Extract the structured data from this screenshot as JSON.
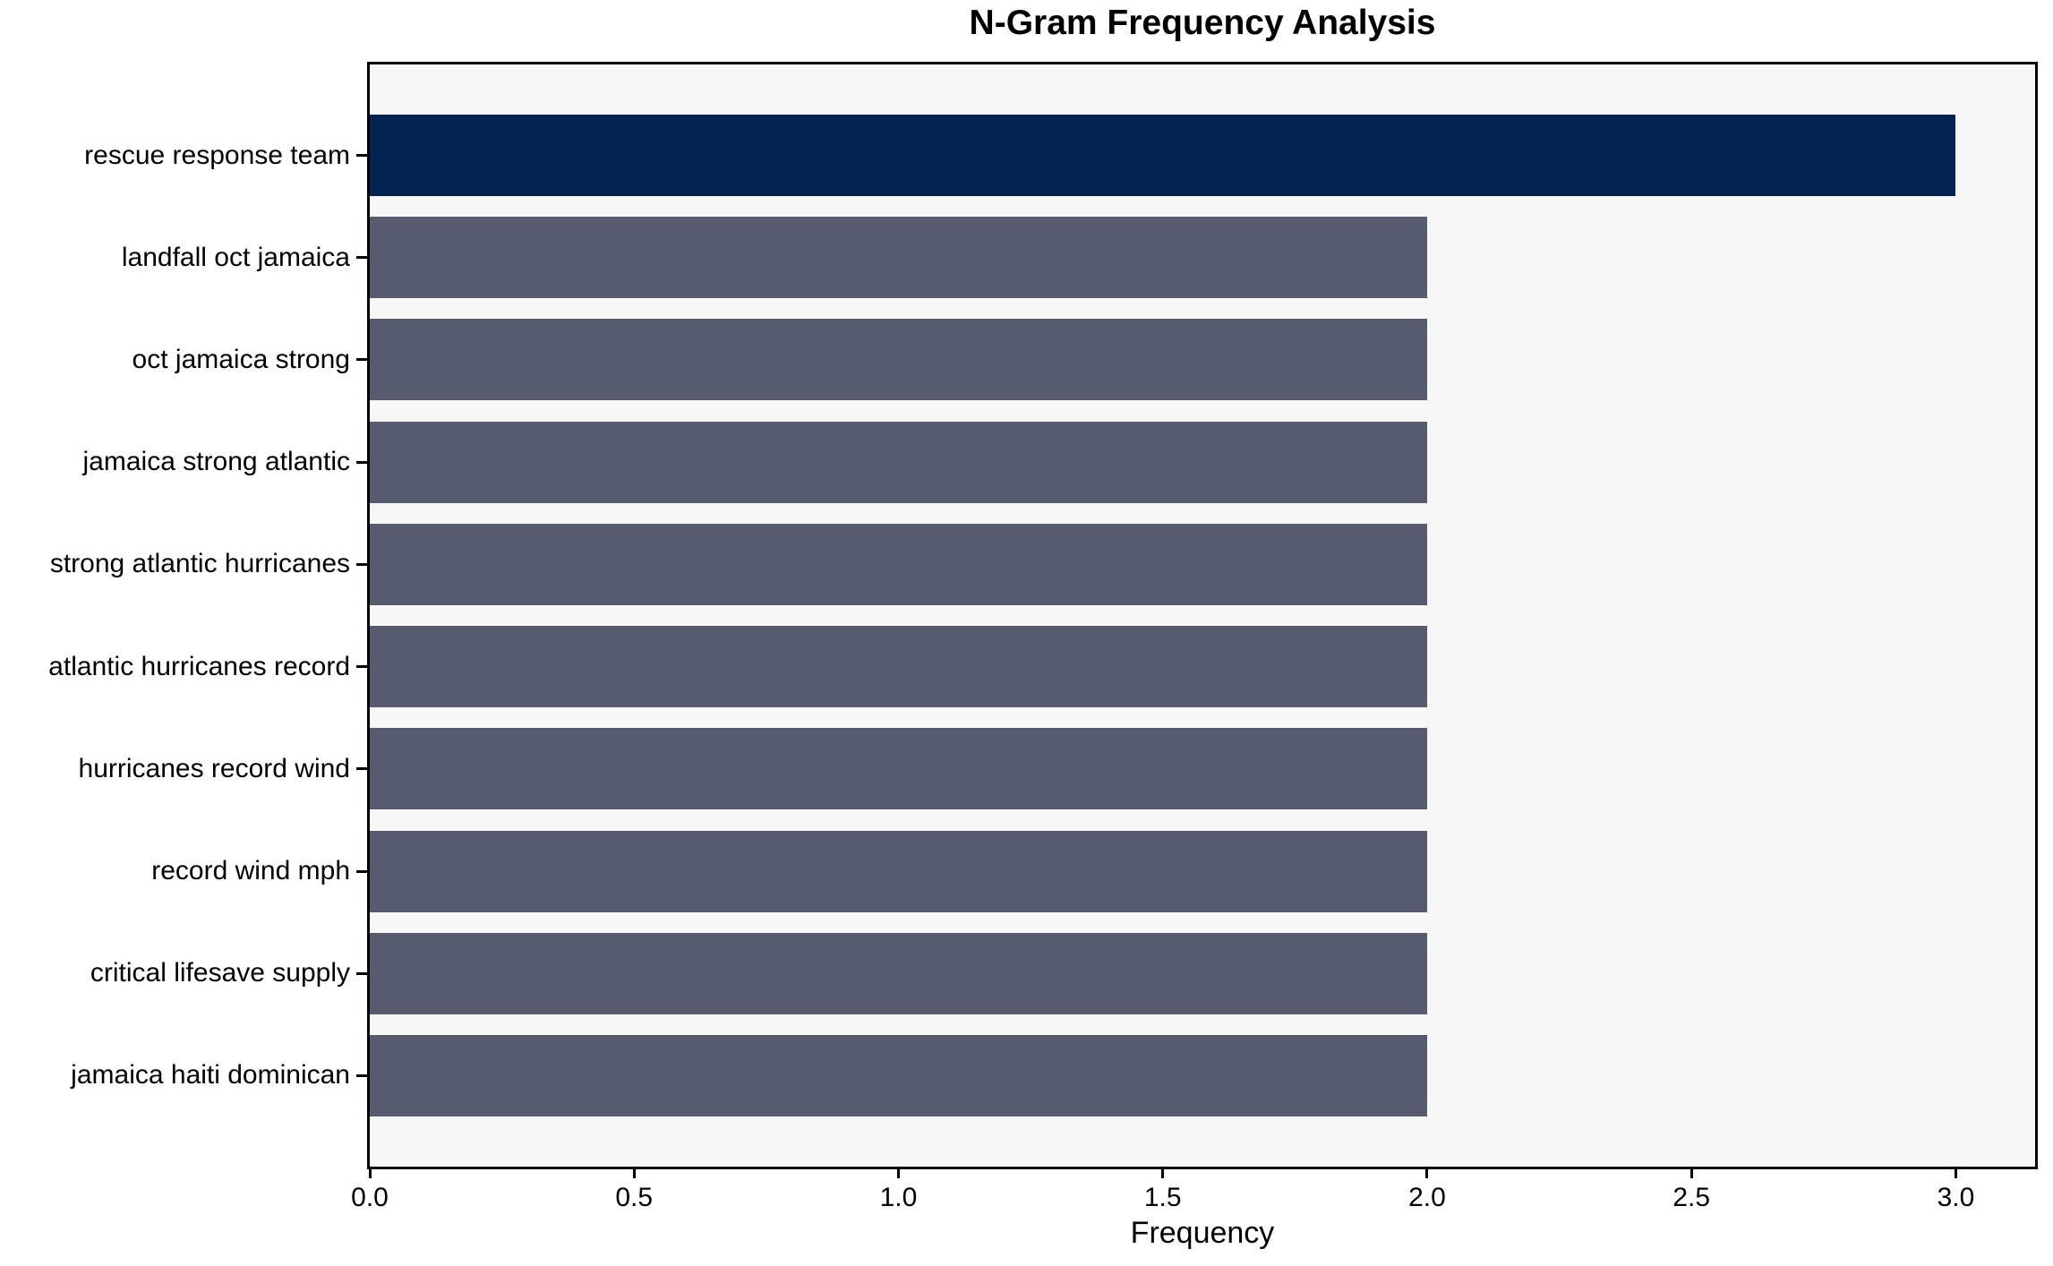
{
  "chart_data": {
    "type": "bar",
    "orientation": "horizontal",
    "title": "N-Gram Frequency Analysis",
    "xlabel": "Frequency",
    "ylabel": "",
    "categories": [
      "rescue response team",
      "landfall oct jamaica",
      "oct jamaica strong",
      "jamaica strong atlantic",
      "strong atlantic hurricanes",
      "atlantic hurricanes record",
      "hurricanes record wind",
      "record wind mph",
      "critical lifesave supply",
      "jamaica haiti dominican"
    ],
    "values": [
      3,
      2,
      2,
      2,
      2,
      2,
      2,
      2,
      2,
      2
    ],
    "xlim": [
      0,
      3.15
    ],
    "xticks": [
      0,
      0.5,
      1,
      1.5,
      2,
      2.5,
      3
    ],
    "xtick_labels": [
      "0.0",
      "0.5",
      "1.0",
      "1.5",
      "2.0",
      "2.5",
      "3.0"
    ],
    "grid": false,
    "legend": null,
    "highlight_index": 0,
    "colors": {
      "bar_highlight": "#022350",
      "bar_default": "#565c6e",
      "plot_background": "#f7f7f8",
      "spine": "#000000",
      "text": "#000000"
    }
  }
}
